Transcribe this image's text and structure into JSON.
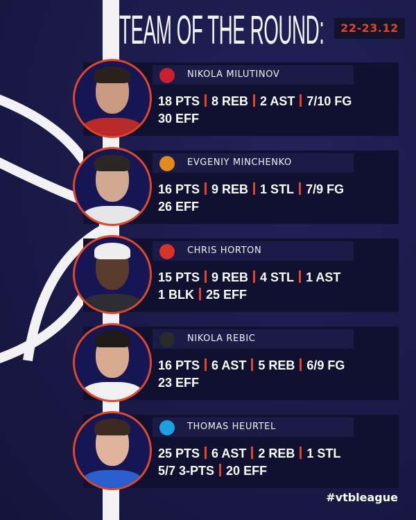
{
  "header": {
    "title": "TEAM OF THE ROUND:",
    "date": "22-23.12"
  },
  "colors": {
    "background": "#1b1a4b",
    "accent": "#e0472a",
    "panel": "#101031"
  },
  "players": [
    {
      "name": "NIKOLA MILUTINOV",
      "team_logo": "CSKA",
      "logo_color": "#c8202e",
      "shirt": "#b82a2a",
      "skin": "#c99a80",
      "hair": "#2a211d",
      "stats": [
        [
          "18 PTS",
          "8 REB",
          "2 AST",
          "7/10 FG"
        ],
        [
          "30 EFF"
        ]
      ]
    },
    {
      "name": "EVGENIY MINCHENKO",
      "team_logo": "basketball-logo",
      "logo_color": "#e08a20",
      "shirt": "#e6e6e6",
      "skin": "#d0a890",
      "hair": "#2b2622",
      "stats": [
        [
          "16 PTS",
          "9 REB",
          "1 STL",
          "7/9 FG"
        ],
        [
          "26 EFF"
        ]
      ]
    },
    {
      "name": "CHRIS HORTON",
      "team_logo": "mountain-logo",
      "logo_color": "#d8322a",
      "shirt": "#2d2d33",
      "skin": "#5a3a2a",
      "hair": "#eeeeee",
      "stats": [
        [
          "15 PTS",
          "9 REB",
          "4 STL",
          "1 AST"
        ],
        [
          "1 BLK",
          "25 EFF"
        ]
      ]
    },
    {
      "name": "NIKOLA REBIC",
      "team_logo": "PAR",
      "logo_color": "#2a2a2a",
      "shirt": "#f0f0f0",
      "skin": "#d7a98e",
      "hair": "#1f1a18",
      "stats": [
        [
          "16 PTS",
          "6 AST",
          "5 REB",
          "6/9 FG"
        ],
        [
          "23 EFF"
        ]
      ]
    },
    {
      "name": "THOMAS HEURTEL",
      "team_logo": "Zen",
      "logo_color": "#1ea0e0",
      "shirt": "#2a5fd0",
      "skin": "#e0b49a",
      "hair": "#3a2a22",
      "stats": [
        [
          "25 PTS",
          "6 AST",
          "2 REB",
          "1 STL"
        ],
        [
          "5/7 3-PTS",
          "20 EFF"
        ]
      ]
    }
  ],
  "footer": {
    "hashtag": "#vtbleague"
  }
}
